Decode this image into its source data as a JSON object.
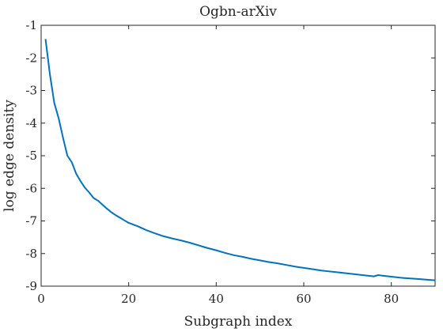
{
  "chart_data": {
    "type": "line",
    "title": "Ogbn-arXiv",
    "xlabel": "Subgraph index",
    "ylabel": "log edge density",
    "xlim": [
      0,
      90
    ],
    "ylim": [
      -9,
      -1
    ],
    "x_ticks": [
      0,
      20,
      40,
      60,
      80
    ],
    "y_ticks": [
      -1,
      -2,
      -3,
      -4,
      -5,
      -6,
      -7,
      -8,
      -9
    ],
    "grid": false,
    "line_color": "#0072BD",
    "series": [
      {
        "x": [
          1,
          2,
          3,
          4,
          5,
          6,
          7,
          8,
          9,
          10,
          11,
          12,
          13,
          14,
          15,
          16,
          17,
          18,
          19,
          20,
          22,
          24,
          26,
          28,
          30,
          32,
          34,
          36,
          38,
          40,
          42,
          44,
          46,
          48,
          50,
          52,
          54,
          56,
          58,
          60,
          62,
          64,
          66,
          68,
          70,
          72,
          74,
          76,
          77,
          78,
          80,
          82,
          84,
          86,
          88,
          90
        ],
        "y": [
          -1.42,
          -2.5,
          -3.38,
          -3.85,
          -4.45,
          -5.0,
          -5.2,
          -5.55,
          -5.78,
          -5.98,
          -6.13,
          -6.3,
          -6.38,
          -6.5,
          -6.62,
          -6.73,
          -6.82,
          -6.9,
          -6.98,
          -7.06,
          -7.16,
          -7.28,
          -7.38,
          -7.47,
          -7.54,
          -7.6,
          -7.67,
          -7.75,
          -7.83,
          -7.9,
          -7.98,
          -8.05,
          -8.1,
          -8.16,
          -8.21,
          -8.26,
          -8.3,
          -8.35,
          -8.4,
          -8.44,
          -8.48,
          -8.52,
          -8.55,
          -8.58,
          -8.61,
          -8.64,
          -8.67,
          -8.7,
          -8.66,
          -8.68,
          -8.71,
          -8.74,
          -8.76,
          -8.78,
          -8.8,
          -8.82
        ]
      }
    ]
  }
}
